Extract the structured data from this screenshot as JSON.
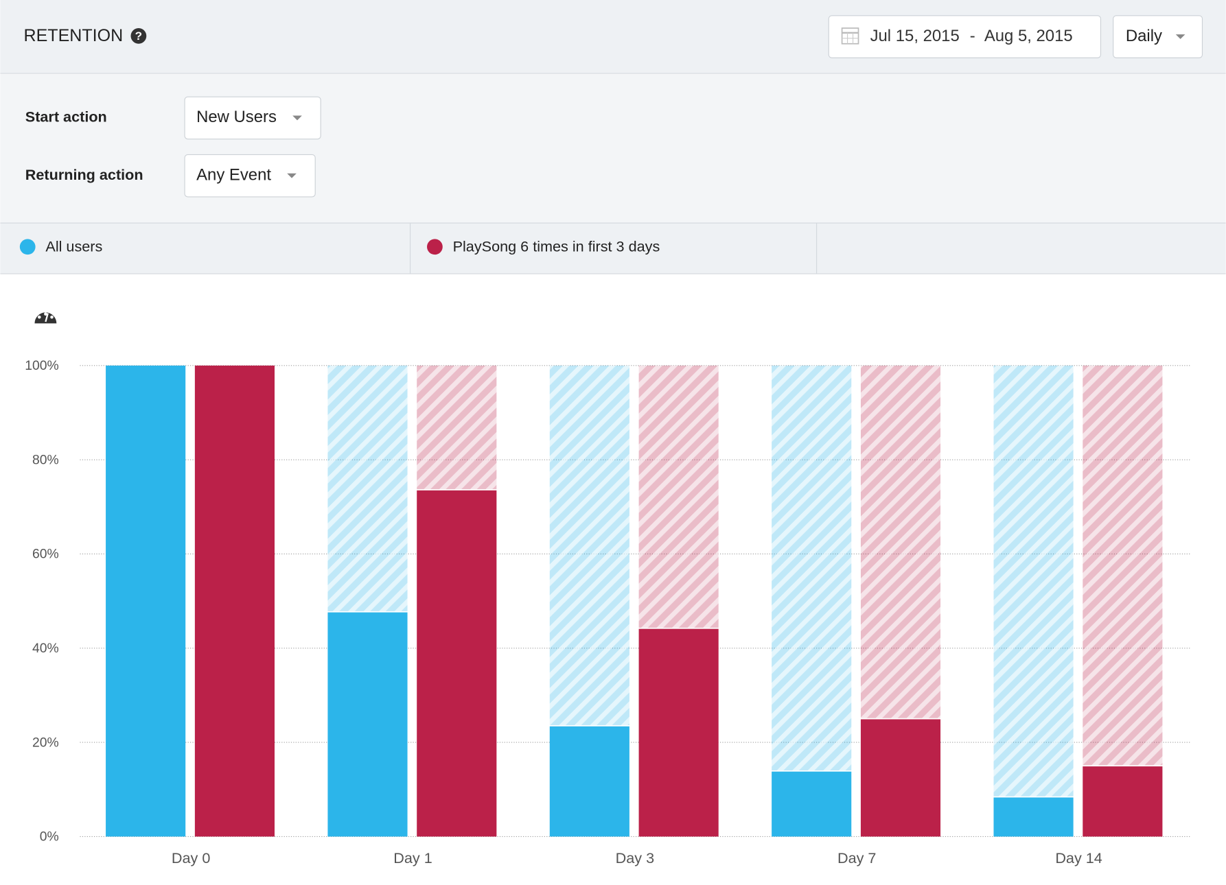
{
  "header": {
    "title": "RETENTION",
    "date_start": "Jul 15, 2015",
    "date_separator": "-",
    "date_end": "Aug 5, 2015",
    "granularity": "Daily"
  },
  "controls": [
    {
      "label": "Start action",
      "value": "New Users"
    },
    {
      "label": "Returning action",
      "value": "Any Event"
    }
  ],
  "chart_data": {
    "type": "bar",
    "categories": [
      "Day 0",
      "Day 1",
      "Day 3",
      "Day 7",
      "Day 14"
    ],
    "series": [
      {
        "name": "All users",
        "color": "#2cb5ea",
        "values": [
          100,
          47.6,
          23.4,
          13.8,
          8.3
        ]
      },
      {
        "name": "PlaySong 6 times in first 3 days",
        "color": "#bb2149",
        "values": [
          100,
          73.5,
          44.1,
          24.9,
          14.9
        ]
      }
    ],
    "ylim": [
      0,
      100
    ],
    "yticks": [
      {
        "value": 0,
        "label": "0%"
      },
      {
        "value": 20,
        "label": "20%"
      },
      {
        "value": 40,
        "label": "40%"
      },
      {
        "value": 60,
        "label": "60%"
      },
      {
        "value": 80,
        "label": "80%"
      },
      {
        "value": 100,
        "label": "100%"
      }
    ],
    "grid": true
  }
}
